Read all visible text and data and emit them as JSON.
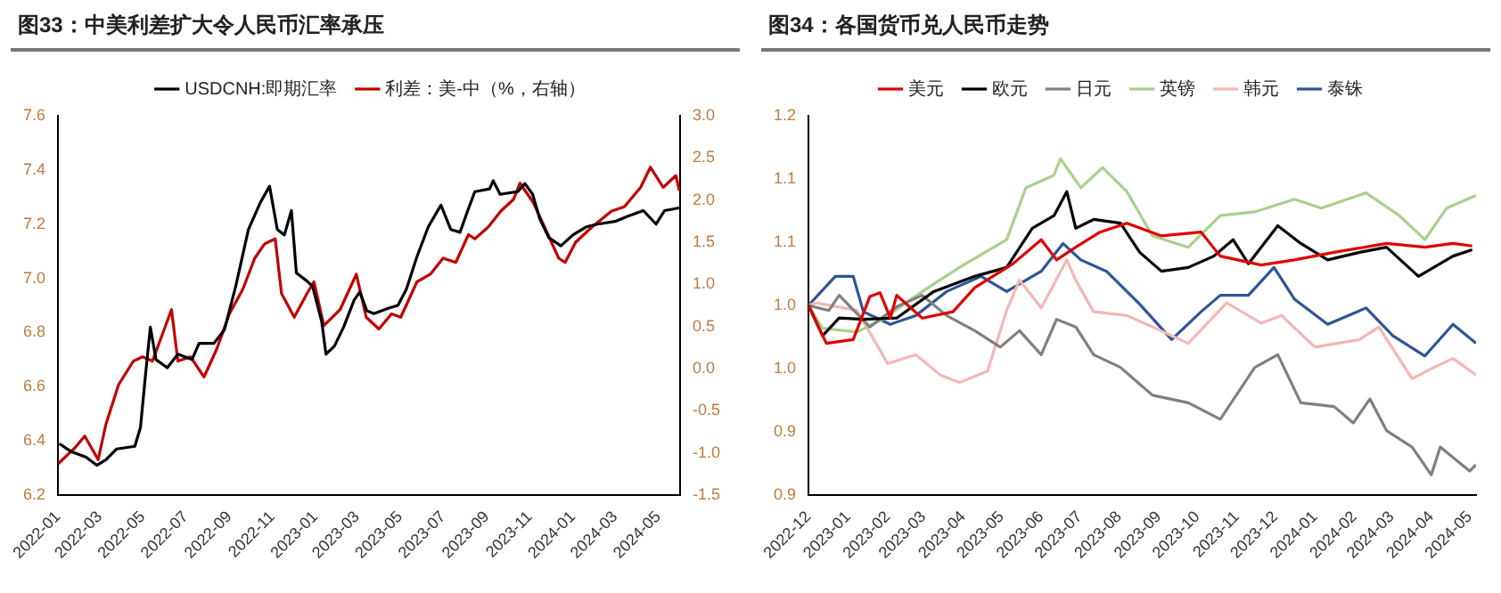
{
  "chart_data": [
    {
      "type": "line",
      "title": "图33：中美利差扩大令人民币汇率承压",
      "legend": "top",
      "marker": "none",
      "xlim": [
        "2022-01-01",
        "2024-06-01"
      ],
      "xticks": [
        "2022-01",
        "2022-03",
        "2022-05",
        "2022-07",
        "2022-09",
        "2022-11",
        "2023-01",
        "2023-03",
        "2023-05",
        "2023-07",
        "2023-09",
        "2023-11",
        "2024-01",
        "2024-03",
        "2024-05"
      ],
      "ylim": [
        6.2,
        7.6
      ],
      "yticks": [
        6.2,
        6.4,
        6.6,
        6.8,
        {
          "value": 7,
          "label": "7.0"
        },
        7.2,
        7.4,
        7.6
      ],
      "y2lim": [
        -1.5,
        3
      ],
      "y2ticks": [
        -1.5,
        {
          "value": -1,
          "label": "-1.0"
        },
        -0.5,
        {
          "value": 0,
          "label": "0.0"
        },
        0.5,
        {
          "value": 1,
          "label": "1.0"
        },
        1.5,
        {
          "value": 2,
          "label": "2.0"
        },
        2.5,
        {
          "value": 3,
          "label": "3.0"
        }
      ],
      "series": [
        {
          "name": "USDCNH:即期汇率",
          "color": "#000000",
          "x": [
            "2022-01-03",
            "2022-01-20",
            "2022-02-10",
            "2022-02-25",
            "2022-03-10",
            "2022-03-25",
            "2022-04-20",
            "2022-04-28",
            "2022-05-05",
            "2022-05-12",
            "2022-05-20",
            "2022-06-05",
            "2022-06-20",
            "2022-07-10",
            "2022-07-20",
            "2022-08-10",
            "2022-08-25",
            "2022-09-10",
            "2022-09-28",
            "2022-10-15",
            "2022-10-28",
            "2022-11-08",
            "2022-11-18",
            "2022-11-28",
            "2022-12-05",
            "2022-12-20",
            "2022-12-28",
            "2023-01-10",
            "2023-01-16",
            "2023-01-28",
            "2023-02-10",
            "2023-02-25",
            "2023-03-05",
            "2023-03-15",
            "2023-03-25",
            "2023-04-15",
            "2023-04-28",
            "2023-05-10",
            "2023-05-25",
            "2023-06-10",
            "2023-06-28",
            "2023-07-12",
            "2023-07-25",
            "2023-08-05",
            "2023-08-15",
            "2023-09-05",
            "2023-09-10",
            "2023-09-20",
            "2023-10-15",
            "2023-10-25",
            "2023-11-05",
            "2023-11-15",
            "2023-11-28",
            "2023-12-15",
            "2024-01-01",
            "2024-01-20",
            "2024-02-05",
            "2024-03-01",
            "2024-03-20",
            "2024-04-10",
            "2024-04-28",
            "2024-05-10",
            "2024-05-31"
          ],
          "values": [
            6.39,
            6.36,
            6.34,
            6.31,
            6.33,
            6.37,
            6.38,
            6.45,
            6.64,
            6.82,
            6.7,
            6.67,
            6.72,
            6.7,
            6.76,
            6.76,
            6.81,
            6.97,
            7.18,
            7.28,
            7.34,
            7.18,
            7.16,
            7.25,
            7.02,
            6.99,
            6.97,
            6.84,
            6.72,
            6.75,
            6.82,
            6.92,
            6.95,
            6.88,
            6.87,
            6.89,
            6.9,
            6.96,
            7.08,
            7.19,
            7.27,
            7.18,
            7.17,
            7.25,
            7.32,
            7.33,
            7.36,
            7.31,
            7.32,
            7.35,
            7.31,
            7.22,
            7.15,
            7.12,
            7.16,
            7.19,
            7.2,
            7.21,
            7.23,
            7.25,
            7.2,
            7.25,
            7.26
          ]
        },
        {
          "name": "利差：美-中（%，右轴）",
          "color": "#c00000",
          "axis": "y2",
          "x": [
            "2022-01-01",
            "2022-01-25",
            "2022-02-08",
            "2022-02-27",
            "2022-03-10",
            "2022-03-28",
            "2022-04-18",
            "2022-05-01",
            "2022-05-15",
            "2022-06-11",
            "2022-06-20",
            "2022-07-08",
            "2022-07-27",
            "2022-08-14",
            "2022-09-01",
            "2022-09-20",
            "2022-10-07",
            "2022-10-21",
            "2022-11-05",
            "2022-11-14",
            "2022-12-02",
            "2022-12-20",
            "2022-12-30",
            "2023-01-13",
            "2023-02-05",
            "2023-02-28",
            "2023-03-14",
            "2023-04-01",
            "2023-04-19",
            "2023-05-02",
            "2023-05-25",
            "2023-06-13",
            "2023-07-01",
            "2023-07-19",
            "2023-08-06",
            "2023-08-15",
            "2023-09-03",
            "2023-09-21",
            "2023-10-09",
            "2023-10-18",
            "2023-11-06",
            "2023-11-24",
            "2023-12-12",
            "2023-12-21",
            "2024-01-05",
            "2024-01-28",
            "2024-02-25",
            "2024-03-14",
            "2024-04-06",
            "2024-04-20",
            "2024-05-08",
            "2024-05-26",
            "2024-05-31"
          ],
          "values": [
            -1.13,
            -0.94,
            -0.8,
            -1.08,
            -0.66,
            -0.19,
            0.09,
            0.14,
            0.09,
            0.7,
            0.09,
            0.14,
            -0.1,
            0.23,
            0.65,
            0.94,
            1.31,
            1.48,
            1.54,
            0.89,
            0.61,
            0.89,
            1.03,
            0.51,
            0.7,
            1.12,
            0.61,
            0.47,
            0.65,
            0.61,
            1.03,
            1.12,
            1.31,
            1.26,
            1.59,
            1.54,
            1.68,
            1.87,
            2.01,
            2.2,
            1.97,
            1.64,
            1.31,
            1.26,
            1.5,
            1.68,
            1.87,
            1.92,
            2.15,
            2.39,
            2.15,
            2.29,
            2.11
          ]
        }
      ]
    },
    {
      "type": "line",
      "title": "图34：各国货币兑人民币走势",
      "legend": "top",
      "marker": "none",
      "xlim": [
        "2022-12-01",
        "2024-05-06"
      ],
      "xticks": [
        "2022-12",
        "2023-01",
        "2023-02",
        "2023-03",
        "2023-04",
        "2023-05",
        "2023-06",
        "2023-07",
        "2023-08",
        "2023-09",
        "2023-10",
        "2023-11",
        "2023-12",
        "2024-01",
        "2024-02",
        "2024-03",
        "2024-04",
        "2024-05"
      ],
      "ylim": [
        0.85,
        1.15
      ],
      "yticks": [
        {
          "value": 0.85,
          "label": "0.9"
        },
        0.9,
        {
          "value": 0.95,
          "label": "1.0"
        },
        {
          "value": 1,
          "label": "1.0"
        },
        {
          "value": 1.05,
          "label": "1.1"
        },
        1.1,
        {
          "value": 1.15,
          "label": "1.2"
        }
      ],
      "series": [
        {
          "name": "美元",
          "color": "#e00000",
          "x": [
            "2022-12-01",
            "2022-12-15",
            "2023-01-05",
            "2023-01-18",
            "2023-01-26",
            "2023-02-03",
            "2023-02-08",
            "2023-02-28",
            "2023-03-24",
            "2023-04-10",
            "2023-05-10",
            "2023-06-01",
            "2023-06-13",
            "2023-06-28",
            "2023-07-17",
            "2023-08-07",
            "2023-09-03",
            "2023-10-04",
            "2023-10-19",
            "2023-11-20",
            "2023-12-16",
            "2024-01-16",
            "2024-02-26",
            "2024-03-27",
            "2024-04-18",
            "2024-05-03"
          ],
          "values": [
            1.0,
            0.97,
            0.973,
            1.007,
            1.01,
            0.99,
            1.008,
            0.99,
            0.995,
            1.014,
            1.033,
            1.052,
            1.036,
            1.046,
            1.058,
            1.065,
            1.055,
            1.058,
            1.039,
            1.032,
            1.036,
            1.042,
            1.049,
            1.046,
            1.049,
            1.047
          ]
        },
        {
          "name": "欧元",
          "color": "#000000",
          "x": [
            "2022-12-01",
            "2022-12-12",
            "2022-12-25",
            "2023-01-13",
            "2023-02-08",
            "2023-03-09",
            "2023-04-10",
            "2023-05-05",
            "2023-05-25",
            "2023-06-11",
            "2023-06-21",
            "2023-06-28",
            "2023-07-12",
            "2023-08-02",
            "2023-08-17",
            "2023-09-03",
            "2023-09-24",
            "2023-10-14",
            "2023-10-29",
            "2023-11-10",
            "2023-12-03",
            "2023-12-21",
            "2024-01-11",
            "2024-02-05",
            "2024-02-26",
            "2024-03-22",
            "2024-04-18",
            "2024-05-03"
          ],
          "values": [
            1.0,
            0.976,
            0.99,
            0.989,
            0.99,
            1.011,
            1.023,
            1.03,
            1.061,
            1.071,
            1.09,
            1.061,
            1.068,
            1.065,
            1.042,
            1.027,
            1.03,
            1.039,
            1.052,
            1.033,
            1.063,
            1.049,
            1.036,
            1.042,
            1.046,
            1.023,
            1.039,
            1.044
          ]
        },
        {
          "name": "日元",
          "color": "#808080",
          "x": [
            "2022-12-01",
            "2022-12-17",
            "2022-12-25",
            "2023-01-18",
            "2023-02-08",
            "2023-02-28",
            "2023-03-19",
            "2023-04-10",
            "2023-04-30",
            "2023-05-15",
            "2023-06-01",
            "2023-06-13",
            "2023-06-28",
            "2023-07-12",
            "2023-08-02",
            "2023-08-27",
            "2023-09-24",
            "2023-10-19",
            "2023-11-15",
            "2023-12-03",
            "2023-12-21",
            "2024-01-16",
            "2024-01-31",
            "2024-02-13",
            "2024-02-26",
            "2024-03-17",
            "2024-04-01",
            "2024-04-08",
            "2024-05-01",
            "2024-05-06"
          ],
          "values": [
            1.0,
            0.996,
            1.008,
            0.983,
            0.999,
            1.008,
            0.992,
            0.98,
            0.967,
            0.98,
            0.961,
            0.989,
            0.983,
            0.961,
            0.951,
            0.929,
            0.923,
            0.91,
            0.951,
            0.961,
            0.923,
            0.92,
            0.907,
            0.926,
            0.901,
            0.888,
            0.866,
            0.888,
            0.869,
            0.874
          ]
        },
        {
          "name": "英镑",
          "color": "#a9d18e",
          "x": [
            "2022-12-01",
            "2022-12-12",
            "2023-01-08",
            "2023-01-28",
            "2023-02-28",
            "2023-03-29",
            "2023-05-05",
            "2023-05-20",
            "2023-06-11",
            "2023-06-16",
            "2023-07-02",
            "2023-07-19",
            "2023-08-07",
            "2023-08-27",
            "2023-09-24",
            "2023-10-19",
            "2023-11-15",
            "2023-12-16",
            "2024-01-06",
            "2024-02-10",
            "2024-03-07",
            "2024-03-27",
            "2024-04-13",
            "2024-05-06"
          ],
          "values": [
            1.0,
            0.982,
            0.979,
            0.989,
            1.011,
            1.03,
            1.052,
            1.093,
            1.103,
            1.116,
            1.093,
            1.109,
            1.09,
            1.055,
            1.046,
            1.071,
            1.074,
            1.084,
            1.077,
            1.089,
            1.071,
            1.052,
            1.077,
            1.087
          ]
        },
        {
          "name": "韩元",
          "color": "#f4b6b6",
          "x": [
            "2022-12-01",
            "2022-12-07",
            "2023-01-08",
            "2023-02-01",
            "2023-02-23",
            "2023-03-14",
            "2023-03-29",
            "2023-04-20",
            "2023-05-05",
            "2023-05-15",
            "2023-06-01",
            "2023-06-21",
            "2023-06-28",
            "2023-07-12",
            "2023-08-07",
            "2023-08-27",
            "2023-09-24",
            "2023-10-24",
            "2023-11-20",
            "2023-12-06",
            "2024-01-01",
            "2024-02-05",
            "2024-02-20",
            "2024-03-17",
            "2024-04-03",
            "2024-04-18",
            "2024-05-06"
          ],
          "values": [
            1.0,
            1.002,
            0.996,
            0.954,
            0.961,
            0.945,
            0.939,
            0.948,
            0.996,
            1.02,
            0.998,
            1.036,
            1.02,
            0.995,
            0.992,
            0.983,
            0.97,
            1.002,
            0.986,
            0.992,
            0.967,
            0.973,
            0.983,
            0.942,
            0.951,
            0.958,
            0.945
          ]
        },
        {
          "name": "泰铢",
          "color": "#2f5597",
          "x": [
            "2022-12-01",
            "2022-12-22",
            "2023-01-05",
            "2023-01-13",
            "2023-02-03",
            "2023-02-23",
            "2023-03-19",
            "2023-04-15",
            "2023-05-05",
            "2023-06-01",
            "2023-06-18",
            "2023-07-02",
            "2023-07-22",
            "2023-08-17",
            "2023-09-11",
            "2023-10-04",
            "2023-10-19",
            "2023-11-10",
            "2023-11-30",
            "2023-12-16",
            "2024-01-11",
            "2024-02-10",
            "2024-03-02",
            "2024-03-27",
            "2024-04-18",
            "2024-05-06"
          ],
          "values": [
            1.0,
            1.023,
            1.023,
            0.995,
            0.985,
            0.992,
            1.011,
            1.023,
            1.011,
            1.027,
            1.049,
            1.036,
            1.027,
            1.001,
            0.973,
            0.995,
            1.008,
            1.008,
            1.03,
            1.005,
            0.985,
            0.998,
            0.976,
            0.96,
            0.985,
            0.97
          ]
        }
      ]
    }
  ]
}
